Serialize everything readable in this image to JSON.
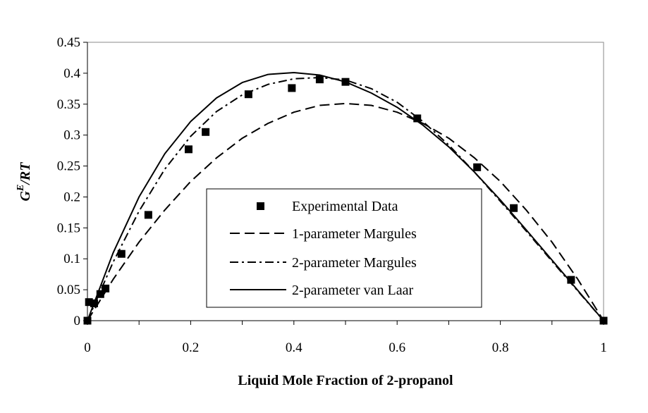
{
  "chart_data": {
    "type": "line",
    "xlabel": "Liquid Mole Fraction of 2-propanol",
    "ylabel_main": "G",
    "ylabel_sup": "E",
    "ylabel_rest": "/RT",
    "xlim": [
      0,
      1
    ],
    "ylim": [
      0,
      0.45
    ],
    "x_ticks": [
      0,
      0.2,
      0.4,
      0.6,
      0.8,
      1
    ],
    "x_tick_labels": [
      "0",
      "0.2",
      "0.4",
      "0.6",
      "0.8",
      "1"
    ],
    "y_ticks": [
      0,
      0.05,
      0.1,
      0.15,
      0.2,
      0.25,
      0.3,
      0.35,
      0.4,
      0.45
    ],
    "y_tick_labels": [
      "0",
      "0.05",
      "0.1",
      "0.15",
      "0.2",
      "0.25",
      "0.3",
      "0.35",
      "0.4",
      "0.45"
    ],
    "grid": false,
    "legend_position": "bottom-center",
    "series": [
      {
        "name": "Experimental Data",
        "style": "markers",
        "x": [
          0.0,
          0.003,
          0.013,
          0.025,
          0.035,
          0.066,
          0.118,
          0.196,
          0.229,
          0.312,
          0.396,
          0.45,
          0.5,
          0.639,
          0.755,
          0.826,
          0.937,
          1.0
        ],
        "y": [
          0.0,
          0.03,
          0.028,
          0.043,
          0.052,
          0.108,
          0.171,
          0.277,
          0.305,
          0.366,
          0.376,
          0.39,
          0.386,
          0.327,
          0.248,
          0.182,
          0.066,
          0.0
        ]
      },
      {
        "name": "1-parameter Margules",
        "style": "dashed",
        "x": [
          0,
          0.05,
          0.1,
          0.15,
          0.2,
          0.25,
          0.3,
          0.35,
          0.4,
          0.45,
          0.5,
          0.55,
          0.6,
          0.65,
          0.7,
          0.75,
          0.8,
          0.85,
          0.9,
          0.95,
          1.0
        ],
        "y": [
          0,
          0.067,
          0.127,
          0.179,
          0.225,
          0.263,
          0.295,
          0.319,
          0.337,
          0.348,
          0.351,
          0.348,
          0.337,
          0.319,
          0.295,
          0.263,
          0.225,
          0.179,
          0.127,
          0.067,
          0
        ]
      },
      {
        "name": "2-parameter Margules",
        "style": "dashdot",
        "x": [
          0,
          0.05,
          0.1,
          0.15,
          0.2,
          0.25,
          0.3,
          0.35,
          0.4,
          0.45,
          0.5,
          0.55,
          0.6,
          0.65,
          0.7,
          0.75,
          0.8,
          0.85,
          0.9,
          0.95,
          1.0
        ],
        "y": [
          0,
          0.095,
          0.177,
          0.245,
          0.298,
          0.338,
          0.365,
          0.382,
          0.391,
          0.393,
          0.389,
          0.375,
          0.353,
          0.322,
          0.284,
          0.24,
          0.193,
          0.145,
          0.096,
          0.048,
          0
        ]
      },
      {
        "name": "2-parameter van Laar",
        "style": "solid",
        "x": [
          0,
          0.05,
          0.1,
          0.15,
          0.2,
          0.25,
          0.3,
          0.35,
          0.4,
          0.45,
          0.5,
          0.55,
          0.6,
          0.65,
          0.7,
          0.75,
          0.8,
          0.85,
          0.9,
          0.95,
          1.0
        ],
        "y": [
          0,
          0.11,
          0.2,
          0.27,
          0.322,
          0.36,
          0.385,
          0.398,
          0.401,
          0.397,
          0.386,
          0.368,
          0.345,
          0.316,
          0.281,
          0.24,
          0.195,
          0.147,
          0.098,
          0.049,
          0
        ]
      }
    ]
  }
}
